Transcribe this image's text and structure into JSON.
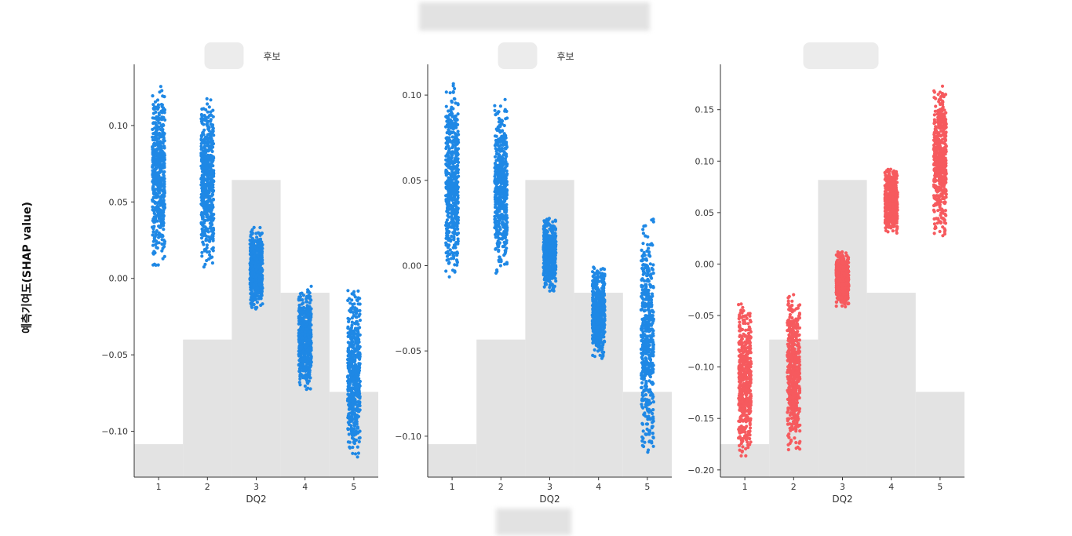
{
  "figure": {
    "suptitle_redacted": true,
    "ylabel": "예측기여도(SHAP value)",
    "footer_redacted": true
  },
  "chart_data": [
    {
      "type": "scatter",
      "title": "후보",
      "title_redacted_prefix": true,
      "xlabel": "DQ2",
      "categories": [
        "1",
        "2",
        "3",
        "4",
        "5"
      ],
      "yticks": [
        -0.1,
        -0.05,
        0.0,
        0.05,
        0.1
      ],
      "ytick_labels": [
        "−0.10",
        "−0.05",
        "0.00",
        "0.05",
        "0.10"
      ],
      "ylim": [
        -0.13,
        0.14
      ],
      "color": "#1f88e5",
      "point_ranges": [
        [
          0.008,
          0.126
        ],
        [
          0.004,
          0.118
        ],
        [
          -0.021,
          0.035
        ],
        [
          -0.074,
          -0.005
        ],
        [
          -0.119,
          -0.004
        ]
      ],
      "histogram": [
        0.012,
        0.05,
        0.108,
        0.067,
        0.031
      ],
      "hist_max": 0.15
    },
    {
      "type": "scatter",
      "title": "후보",
      "title_redacted_prefix": true,
      "xlabel": "DQ2",
      "categories": [
        "1",
        "2",
        "3",
        "4",
        "5"
      ],
      "yticks": [
        -0.1,
        -0.05,
        0.0,
        0.05,
        0.1
      ],
      "ytick_labels": [
        "−0.10",
        "−0.05",
        "0.00",
        "0.05",
        "0.10"
      ],
      "ylim": [
        -0.124,
        0.118
      ],
      "color": "#1f88e5",
      "point_ranges": [
        [
          -0.008,
          0.108
        ],
        [
          -0.005,
          0.098
        ],
        [
          -0.015,
          0.029
        ],
        [
          -0.055,
          0.0
        ],
        [
          -0.113,
          0.029
        ]
      ],
      "histogram": [
        0.012,
        0.05,
        0.108,
        0.067,
        0.031
      ],
      "hist_max": 0.15
    },
    {
      "type": "scatter",
      "title": "",
      "title_redacted_prefix": true,
      "xlabel": "DQ2",
      "categories": [
        "1",
        "2",
        "3",
        "4",
        "5"
      ],
      "yticks": [
        -0.2,
        -0.15,
        -0.1,
        -0.05,
        0.0,
        0.05,
        0.1,
        0.15
      ],
      "ytick_labels": [
        "−0.20",
        "−0.15",
        "−0.10",
        "−0.05",
        "0.00",
        "0.05",
        "0.10",
        "0.15"
      ],
      "ylim": [
        -0.207,
        0.194
      ],
      "color": "#f65a5e",
      "point_ranges": [
        [
          -0.188,
          -0.034
        ],
        [
          -0.183,
          -0.028
        ],
        [
          -0.042,
          0.013
        ],
        [
          0.028,
          0.095
        ],
        [
          0.026,
          0.176
        ]
      ],
      "histogram": [
        0.012,
        0.05,
        0.108,
        0.067,
        0.031
      ],
      "hist_max": 0.15
    }
  ]
}
